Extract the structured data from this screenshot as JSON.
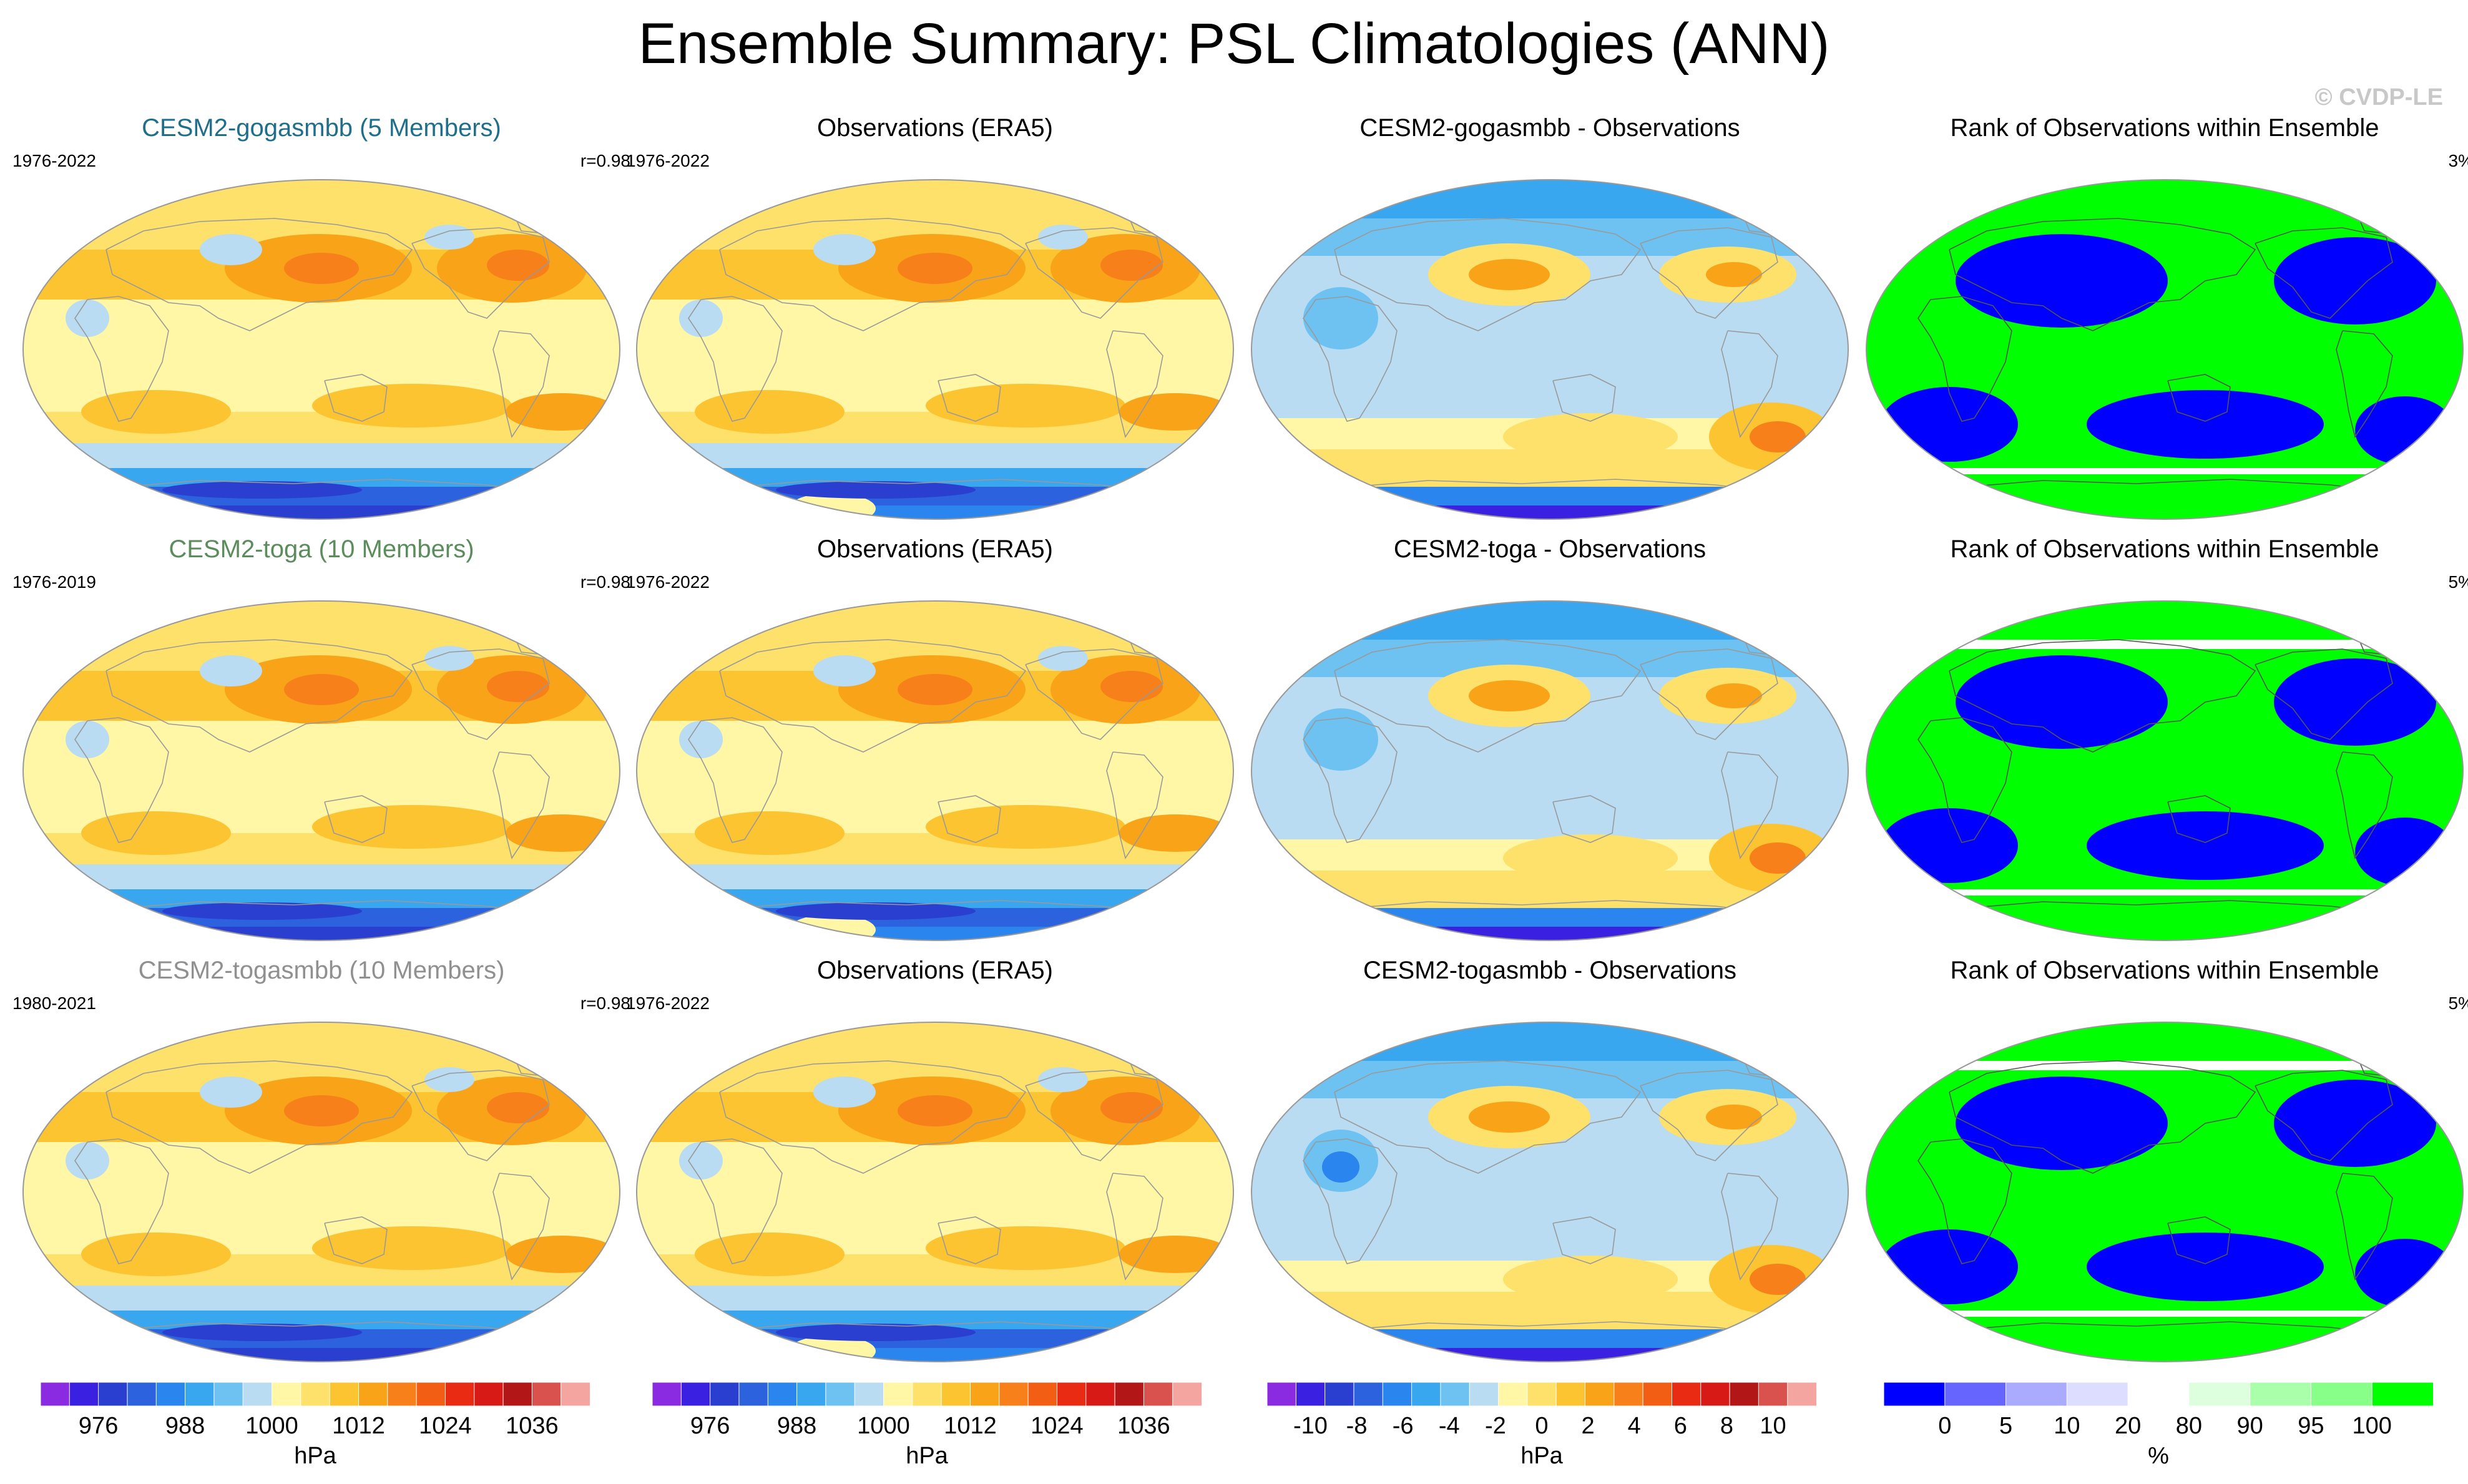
{
  "figure_title": "Ensemble Summary: PSL Climatologies (ANN)",
  "watermark": "© CVDP-LE",
  "colors": {
    "psl_scale": [
      "#8a2be2",
      "#3a20e0",
      "#2a3fd0",
      "#2d62df",
      "#2a85ee",
      "#39a6f0",
      "#6ec2f2",
      "#b9dcf2",
      "#fff7a6",
      "#fde16a",
      "#fcc430",
      "#f9a318",
      "#f7801a",
      "#f25f14",
      "#ea2b13",
      "#d81a16",
      "#b31616",
      "#d9524e",
      "#f4a5a0"
    ],
    "rank_scale": [
      "#0000ff",
      "#6666ff",
      "#aaaaff",
      "#ddddff",
      "#ffffff",
      "#ddffdd",
      "#aaffaa",
      "#88ff88",
      "#00ff00"
    ]
  },
  "panels": [
    {
      "title": "CESM2-gogasmbb (5 Members)",
      "title_color": "#1f6e8c",
      "left": "1976-2022",
      "right": "r=0.98",
      "kind": "psl",
      "variant": 1
    },
    {
      "title": "Observations (ERA5)",
      "title_color": "#000000",
      "left": "1976-2022",
      "right": "",
      "kind": "psl",
      "variant": 0
    },
    {
      "title": "CESM2-gogasmbb - Observations",
      "title_color": "#000000",
      "left": "",
      "right": "",
      "kind": "diff",
      "variant": 1
    },
    {
      "title": "Rank of Observations within Ensemble",
      "title_color": "#000000",
      "left": "",
      "right": "3%",
      "kind": "rank",
      "variant": 1
    },
    {
      "title": "CESM2-toga (10 Members)",
      "title_color": "#5b8c5b",
      "left": "1976-2019",
      "right": "r=0.98",
      "kind": "psl",
      "variant": 2
    },
    {
      "title": "Observations (ERA5)",
      "title_color": "#000000",
      "left": "1976-2022",
      "right": "",
      "kind": "psl",
      "variant": 0
    },
    {
      "title": "CESM2-toga - Observations",
      "title_color": "#000000",
      "left": "",
      "right": "",
      "kind": "diff",
      "variant": 2
    },
    {
      "title": "Rank of Observations within Ensemble",
      "title_color": "#000000",
      "left": "",
      "right": "5%",
      "kind": "rank",
      "variant": 2
    },
    {
      "title": "CESM2-togasmbb (10 Members)",
      "title_color": "#909090",
      "left": "1980-2021",
      "right": "r=0.98",
      "kind": "psl",
      "variant": 3
    },
    {
      "title": "Observations (ERA5)",
      "title_color": "#000000",
      "left": "1976-2022",
      "right": "",
      "kind": "psl",
      "variant": 0
    },
    {
      "title": "CESM2-togasmbb - Observations",
      "title_color": "#000000",
      "left": "",
      "right": "",
      "kind": "diff",
      "variant": 3
    },
    {
      "title": "Rank of Observations within Ensemble",
      "title_color": "#000000",
      "left": "",
      "right": "5%",
      "kind": "rank",
      "variant": 3
    }
  ],
  "colorbars": [
    {
      "unit": "hPa",
      "ticks": [
        "976",
        "988",
        "1000",
        "1012",
        "1024",
        "1036"
      ],
      "palette": "psl_scale"
    },
    {
      "unit": "hPa",
      "ticks": [
        "976",
        "988",
        "1000",
        "1012",
        "1024",
        "1036"
      ],
      "palette": "psl_scale"
    },
    {
      "unit": "hPa",
      "ticks": [
        "-10",
        "-8",
        "-6",
        "-4",
        "-2",
        "0",
        "2",
        "4",
        "6",
        "8",
        "10"
      ],
      "palette": "psl_scale"
    },
    {
      "unit": "%",
      "ticks": [
        "0",
        "5",
        "10",
        "20",
        "80",
        "90",
        "95",
        "100"
      ],
      "palette": "rank_scale"
    }
  ],
  "chart_data": {
    "type": "heatmap",
    "variable": "PSL",
    "season": "ANN",
    "projection": "Robinson",
    "psl_colorbar_labels": [
      976,
      988,
      1000,
      1012,
      1024,
      1036
    ],
    "diff_colorbar_labels": [
      -10,
      -8,
      -6,
      -4,
      -2,
      0,
      2,
      4,
      6,
      8,
      10
    ],
    "rank_colorbar_labels": [
      0,
      5,
      10,
      20,
      80,
      90,
      95,
      100
    ]
  }
}
